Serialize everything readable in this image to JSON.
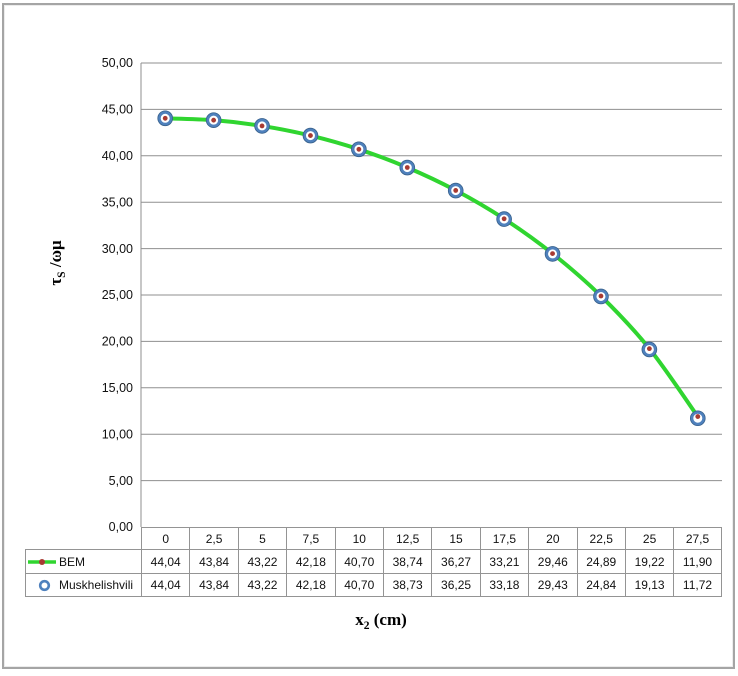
{
  "figure": {
    "y_axis_title": {
      "base": "τ",
      "sub": "S",
      "rest": " /ωμ"
    },
    "x_axis_title": {
      "base": "x",
      "sub": "2",
      "rest": " (cm)"
    }
  },
  "style": {
    "grid_color": "#8f8f8f",
    "axis_color": "#8f8f8f",
    "table_border_color": "#949494",
    "line_green": "#30d530",
    "marker_ring_blue": "#4f81bd",
    "marker_ring_edge": "#38618c",
    "marker_dot_red": "#a83a32",
    "frame_gray": "#a5a5a5"
  },
  "chart_data": {
    "type": "line",
    "title": "",
    "xlabel": "x2 (cm)",
    "ylabel": "τS /ωμ",
    "x": [
      0,
      2.5,
      5,
      7.5,
      10,
      12.5,
      15,
      17.5,
      20,
      22.5,
      25,
      27.5
    ],
    "x_labels": [
      "0",
      "2,5",
      "5",
      "7,5",
      "10",
      "12,5",
      "15",
      "17,5",
      "20",
      "22,5",
      "25",
      "27,5"
    ],
    "ylim": [
      0,
      50
    ],
    "ytick_step": 5,
    "ytick_labels": [
      "0,00",
      "5,00",
      "10,00",
      "15,00",
      "20,00",
      "25,00",
      "30,00",
      "35,00",
      "40,00",
      "45,00",
      "50,00"
    ],
    "grid": "horizontal",
    "legend_position": "table-left",
    "series": [
      {
        "name": "BEM",
        "marker": "red-dot-on-green-line",
        "line_color": "#30d530",
        "marker_color": "#a83a32",
        "values": [
          44.04,
          43.84,
          43.22,
          42.18,
          40.7,
          38.74,
          36.27,
          33.21,
          29.46,
          24.89,
          19.22,
          11.9
        ],
        "display": [
          "44,04",
          "43,84",
          "43,22",
          "42,18",
          "40,70",
          "38,74",
          "36,27",
          "33,21",
          "29,46",
          "24,89",
          "19,22",
          "11,90"
        ]
      },
      {
        "name": "Muskhelishvili",
        "marker": "open-blue-circle",
        "line_color": null,
        "marker_color": "#4f81bd",
        "values": [
          44.04,
          43.84,
          43.22,
          42.18,
          40.7,
          38.73,
          36.25,
          33.18,
          29.43,
          24.84,
          19.13,
          11.72
        ],
        "display": [
          "44,04",
          "43,84",
          "43,22",
          "42,18",
          "40,70",
          "38,73",
          "36,25",
          "33,18",
          "29,43",
          "24,84",
          "19,13",
          "11,72"
        ]
      }
    ]
  }
}
